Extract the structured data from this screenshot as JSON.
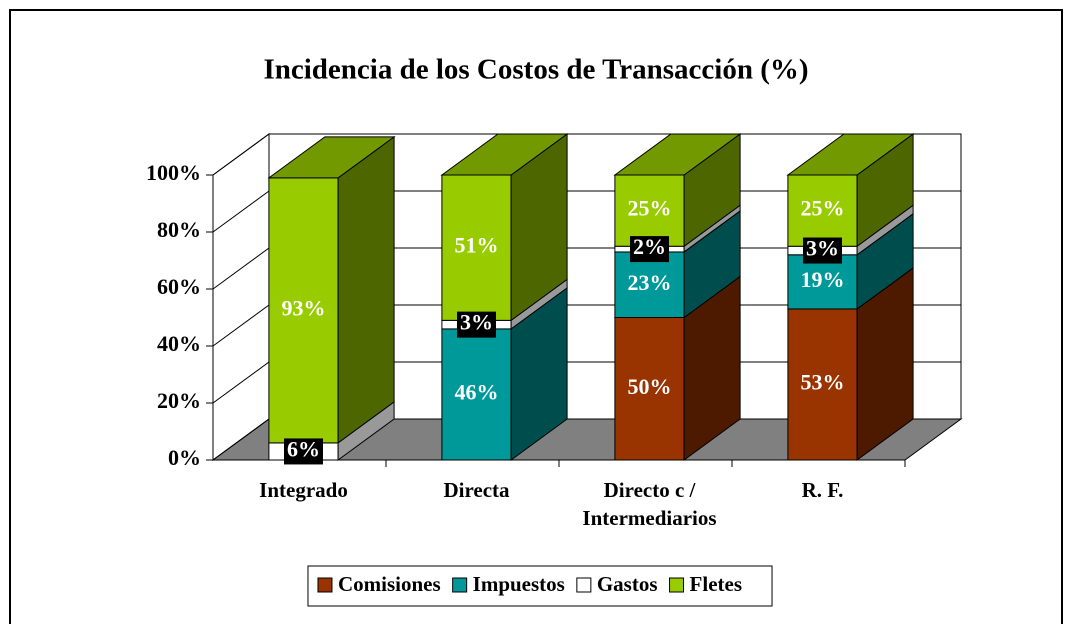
{
  "chart_data": {
    "type": "bar3d_stacked",
    "title": "Incidencia de los Costos de Transacción (%)",
    "categories": [
      "Integrado",
      "Directa",
      "Directo c / Intermediarios",
      "R. F."
    ],
    "series": [
      {
        "name": "Comisiones",
        "color": "#993300",
        "values": [
          0,
          0,
          50,
          53
        ],
        "value_labels": [
          null,
          null,
          "50%",
          "53%"
        ]
      },
      {
        "name": "Impuestos",
        "color": "#009999",
        "values": [
          0,
          46,
          23,
          19
        ],
        "value_labels": [
          null,
          "46%",
          "23%",
          "19%"
        ]
      },
      {
        "name": "Gastos",
        "color": "#ffffff",
        "values": [
          6,
          3,
          2,
          3
        ],
        "value_labels": [
          "6%",
          "3%",
          "2%",
          "3%"
        ]
      },
      {
        "name": "Fletes",
        "color": "#99cc00",
        "values": [
          93,
          51,
          25,
          25
        ],
        "value_labels": [
          "93%",
          "51%",
          "25%",
          "25%"
        ]
      }
    ],
    "ylim": [
      0,
      100
    ],
    "yticks": [
      {
        "value": 0,
        "label": "0%"
      },
      {
        "value": 20,
        "label": "20%"
      },
      {
        "value": 40,
        "label": "40%"
      },
      {
        "value": 60,
        "label": "60%"
      },
      {
        "value": 80,
        "label": "80%"
      },
      {
        "value": 100,
        "label": "100%"
      }
    ],
    "grid": true,
    "legend": "bottom"
  }
}
